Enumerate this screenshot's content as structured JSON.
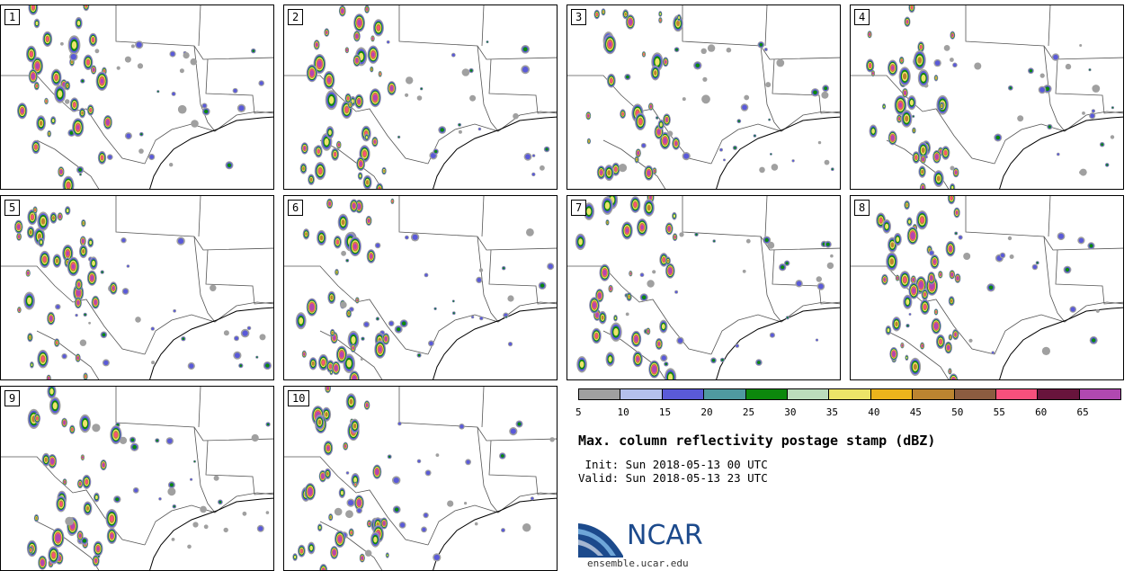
{
  "panels": [
    {
      "label": "1"
    },
    {
      "label": "2"
    },
    {
      "label": "3"
    },
    {
      "label": "4"
    },
    {
      "label": "5"
    },
    {
      "label": "6"
    },
    {
      "label": "7"
    },
    {
      "label": "8"
    },
    {
      "label": "9"
    },
    {
      "label": "10"
    }
  ],
  "colorbar": {
    "colors": [
      "#a0a0a0",
      "#b4c0ec",
      "#5a5ad8",
      "#4f9aa0",
      "#0c880c",
      "#bcdcbc",
      "#ece468",
      "#ecb41c",
      "#bc8430",
      "#8c5c40",
      "#f8507c",
      "#68143c",
      "#b048b0"
    ],
    "ticks": [
      "5",
      "10",
      "15",
      "20",
      "25",
      "30",
      "35",
      "40",
      "45",
      "50",
      "55",
      "60",
      "65"
    ]
  },
  "title": "Max. column reflectivity postage stamp (dBZ)",
  "init": " Init: Sun 2018-05-13 00 UTC",
  "valid": "Valid: Sun 2018-05-13 23 UTC",
  "logo_text": "NCAR",
  "url": "ensemble.ucar.edu"
}
